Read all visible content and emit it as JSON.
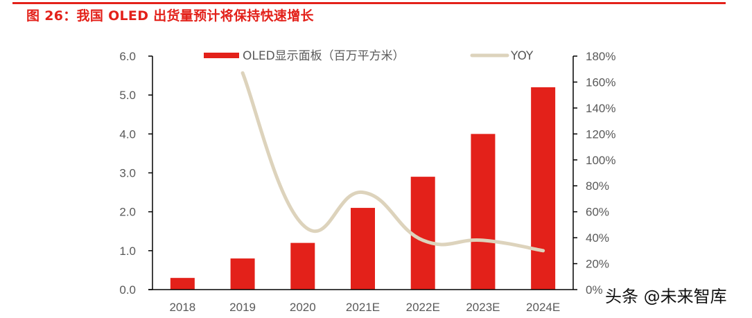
{
  "header": {
    "title": "图 26：我国 OLED 出货量预计将保持快速增长"
  },
  "watermark": "头条 @未来智库",
  "colors": {
    "bar": "#E3211A",
    "line": "#DDD3BC",
    "title": "#E3211A",
    "text": "#595959",
    "axis": "#000000"
  },
  "chart_data": {
    "type": "bar",
    "title": "图 26：我国 OLED 出货量预计将保持快速增长",
    "categories": [
      "2018",
      "2019",
      "2020",
      "2021E",
      "2022E",
      "2023E",
      "2024E"
    ],
    "series": [
      {
        "name": "OLED显示面板（百万平方米）",
        "type": "bar",
        "axis": "left",
        "values": [
          0.3,
          0.8,
          1.2,
          2.1,
          2.9,
          4.0,
          5.2
        ]
      },
      {
        "name": "YOY",
        "type": "line",
        "axis": "right",
        "smooth": true,
        "values": [
          null,
          1.67,
          0.5,
          0.75,
          0.38,
          0.38,
          0.3
        ]
      }
    ],
    "y_left": {
      "ylim": [
        0,
        6
      ],
      "ticks": [
        0,
        1,
        2,
        3,
        4,
        5,
        6
      ],
      "tick_labels": [
        "0.0",
        "1.0",
        "2.0",
        "3.0",
        "4.0",
        "5.0",
        "6.0"
      ]
    },
    "y_right": {
      "ylim": [
        0,
        1.8
      ],
      "ticks": [
        0,
        0.2,
        0.4,
        0.6,
        0.8,
        1.0,
        1.2,
        1.4,
        1.6,
        1.8
      ],
      "tick_labels": [
        "0%",
        "20%",
        "40%",
        "60%",
        "80%",
        "100%",
        "120%",
        "140%",
        "160%",
        "180%"
      ]
    },
    "xlabel": "",
    "ylabel": "",
    "grid": false,
    "legend": {
      "position": "top-center",
      "entries": [
        "OLED显示面板（百万平方米）",
        "YOY"
      ]
    }
  }
}
